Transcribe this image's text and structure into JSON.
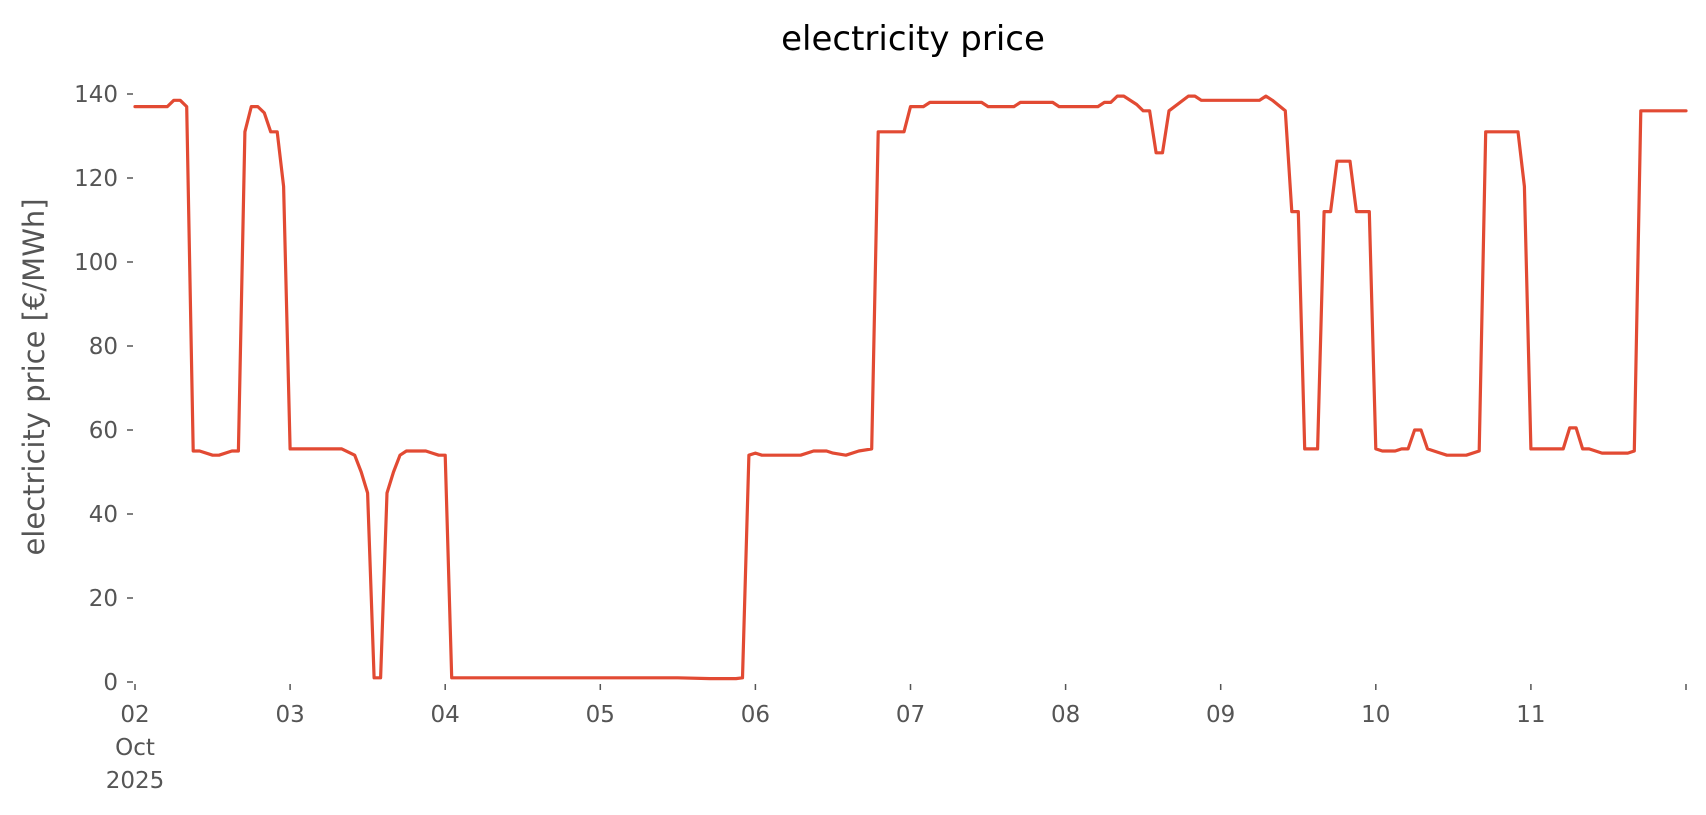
{
  "chart_data": {
    "type": "line",
    "title": "electricity price",
    "xlabel": "",
    "ylabel": "electricity price [€/MWh]",
    "xlim": [
      "2025-10-02 00:00",
      "2025-10-12 00:00"
    ],
    "ylim": [
      0,
      140
    ],
    "grid": false,
    "legend": "none",
    "y_ticks": [
      0,
      20,
      40,
      60,
      80,
      100,
      120,
      140
    ],
    "x_ticks": [
      {
        "at": "2025-10-02 00:00",
        "lines": [
          "02",
          "Oct",
          "2025"
        ]
      },
      {
        "at": "2025-10-03 00:00",
        "lines": [
          "03"
        ]
      },
      {
        "at": "2025-10-04 00:00",
        "lines": [
          "04"
        ]
      },
      {
        "at": "2025-10-05 00:00",
        "lines": [
          "05"
        ]
      },
      {
        "at": "2025-10-06 00:00",
        "lines": [
          "06"
        ]
      },
      {
        "at": "2025-10-07 00:00",
        "lines": [
          "07"
        ]
      },
      {
        "at": "2025-10-08 00:00",
        "lines": [
          "08"
        ]
      },
      {
        "at": "2025-10-09 00:00",
        "lines": [
          "09"
        ]
      },
      {
        "at": "2025-10-10 00:00",
        "lines": [
          "10"
        ]
      },
      {
        "at": "2025-10-11 00:00",
        "lines": [
          "11"
        ]
      },
      {
        "at": "2025-10-12 00:00",
        "lines": [
          ""
        ]
      }
    ],
    "series": [
      {
        "color": "#e24a33",
        "points": [
          [
            "2025-10-02 00:00",
            137
          ],
          [
            "2025-10-02 05:00",
            137
          ],
          [
            "2025-10-02 06:00",
            138.5
          ],
          [
            "2025-10-02 07:00",
            138.5
          ],
          [
            "2025-10-02 08:00",
            137
          ],
          [
            "2025-10-02 09:00",
            55
          ],
          [
            "2025-10-02 10:00",
            55
          ],
          [
            "2025-10-02 12:00",
            54
          ],
          [
            "2025-10-02 13:00",
            54
          ],
          [
            "2025-10-02 15:00",
            55
          ],
          [
            "2025-10-02 16:00",
            55
          ],
          [
            "2025-10-02 17:00",
            131
          ],
          [
            "2025-10-02 18:00",
            137
          ],
          [
            "2025-10-02 19:00",
            137
          ],
          [
            "2025-10-02 20:00",
            135.5
          ],
          [
            "2025-10-02 21:00",
            131
          ],
          [
            "2025-10-02 22:00",
            131
          ],
          [
            "2025-10-02 23:00",
            118
          ],
          [
            "2025-10-03 00:00",
            55.5
          ],
          [
            "2025-10-03 08:00",
            55.5
          ],
          [
            "2025-10-03 10:00",
            54
          ],
          [
            "2025-10-03 11:00",
            50
          ],
          [
            "2025-10-03 12:00",
            45
          ],
          [
            "2025-10-03 13:00",
            1
          ],
          [
            "2025-10-03 14:00",
            1
          ],
          [
            "2025-10-03 15:00",
            45
          ],
          [
            "2025-10-03 16:00",
            50
          ],
          [
            "2025-10-03 17:00",
            54
          ],
          [
            "2025-10-03 18:00",
            55
          ],
          [
            "2025-10-03 21:00",
            55
          ],
          [
            "2025-10-03 22:00",
            54.5
          ],
          [
            "2025-10-03 23:00",
            54
          ],
          [
            "2025-10-04 00:00",
            54
          ],
          [
            "2025-10-04 01:00",
            1
          ],
          [
            "2025-10-04 12:00",
            1
          ],
          [
            "2025-10-04 20:00",
            1
          ],
          [
            "2025-10-05 12:00",
            1
          ],
          [
            "2025-10-05 17:00",
            0.8
          ],
          [
            "2025-10-05 21:00",
            0.8
          ],
          [
            "2025-10-05 22:00",
            1
          ],
          [
            "2025-10-05 23:00",
            54
          ],
          [
            "2025-10-06 00:00",
            54.5
          ],
          [
            "2025-10-06 01:00",
            54
          ],
          [
            "2025-10-06 05:00",
            54
          ],
          [
            "2025-10-06 07:00",
            54
          ],
          [
            "2025-10-06 09:00",
            55
          ],
          [
            "2025-10-06 11:00",
            55
          ],
          [
            "2025-10-06 12:00",
            54.5
          ],
          [
            "2025-10-06 14:00",
            54
          ],
          [
            "2025-10-06 16:00",
            55
          ],
          [
            "2025-10-06 18:00",
            55.5
          ],
          [
            "2025-10-06 19:00",
            131
          ],
          [
            "2025-10-06 20:00",
            131
          ],
          [
            "2025-10-06 23:00",
            131
          ],
          [
            "2025-10-07 00:00",
            137
          ],
          [
            "2025-10-07 02:00",
            137
          ],
          [
            "2025-10-07 03:00",
            138
          ],
          [
            "2025-10-07 11:00",
            138
          ],
          [
            "2025-10-07 12:00",
            137
          ],
          [
            "2025-10-07 16:00",
            137
          ],
          [
            "2025-10-07 17:00",
            138
          ],
          [
            "2025-10-07 22:00",
            138
          ],
          [
            "2025-10-07 23:00",
            137
          ],
          [
            "2025-10-08 05:00",
            137
          ],
          [
            "2025-10-08 06:00",
            138
          ],
          [
            "2025-10-08 07:00",
            138
          ],
          [
            "2025-10-08 08:00",
            139.5
          ],
          [
            "2025-10-08 09:00",
            139.5
          ],
          [
            "2025-10-08 11:00",
            137.5
          ],
          [
            "2025-10-08 12:00",
            136
          ],
          [
            "2025-10-08 13:00",
            136
          ],
          [
            "2025-10-08 14:00",
            126
          ],
          [
            "2025-10-08 15:00",
            126
          ],
          [
            "2025-10-08 16:00",
            136
          ],
          [
            "2025-10-08 19:00",
            139.5
          ],
          [
            "2025-10-08 20:00",
            139.5
          ],
          [
            "2025-10-08 21:00",
            138.5
          ],
          [
            "2025-10-09 06:00",
            138.5
          ],
          [
            "2025-10-09 07:00",
            139.5
          ],
          [
            "2025-10-09 08:00",
            138.5
          ],
          [
            "2025-10-09 10:00",
            136
          ],
          [
            "2025-10-09 11:00",
            112
          ],
          [
            "2025-10-09 12:00",
            112
          ],
          [
            "2025-10-09 13:00",
            55.5
          ],
          [
            "2025-10-09 15:00",
            55.5
          ],
          [
            "2025-10-09 16:00",
            112
          ],
          [
            "2025-10-09 17:00",
            112
          ],
          [
            "2025-10-09 18:00",
            124
          ],
          [
            "2025-10-09 20:00",
            124
          ],
          [
            "2025-10-09 21:00",
            112
          ],
          [
            "2025-10-09 23:00",
            112
          ],
          [
            "2025-10-10 00:00",
            55.5
          ],
          [
            "2025-10-10 01:00",
            55
          ],
          [
            "2025-10-10 03:00",
            55
          ],
          [
            "2025-10-10 04:00",
            55.5
          ],
          [
            "2025-10-10 05:00",
            55.5
          ],
          [
            "2025-10-10 06:00",
            60
          ],
          [
            "2025-10-10 07:00",
            60
          ],
          [
            "2025-10-10 08:00",
            55.5
          ],
          [
            "2025-10-10 10:00",
            54.5
          ],
          [
            "2025-10-10 11:00",
            54
          ],
          [
            "2025-10-10 14:00",
            54
          ],
          [
            "2025-10-10 16:00",
            55
          ],
          [
            "2025-10-10 17:00",
            131
          ],
          [
            "2025-10-10 22:00",
            131
          ],
          [
            "2025-10-10 23:00",
            118
          ],
          [
            "2025-10-11 00:00",
            55.5
          ],
          [
            "2025-10-11 05:00",
            55.5
          ],
          [
            "2025-10-11 06:00",
            60.5
          ],
          [
            "2025-10-11 07:00",
            60.5
          ],
          [
            "2025-10-11 08:00",
            55.5
          ],
          [
            "2025-10-11 09:00",
            55.5
          ],
          [
            "2025-10-11 11:00",
            54.5
          ],
          [
            "2025-10-11 15:00",
            54.5
          ],
          [
            "2025-10-11 16:00",
            55
          ],
          [
            "2025-10-11 17:00",
            136
          ],
          [
            "2025-10-12 00:00",
            136
          ]
        ]
      }
    ]
  }
}
